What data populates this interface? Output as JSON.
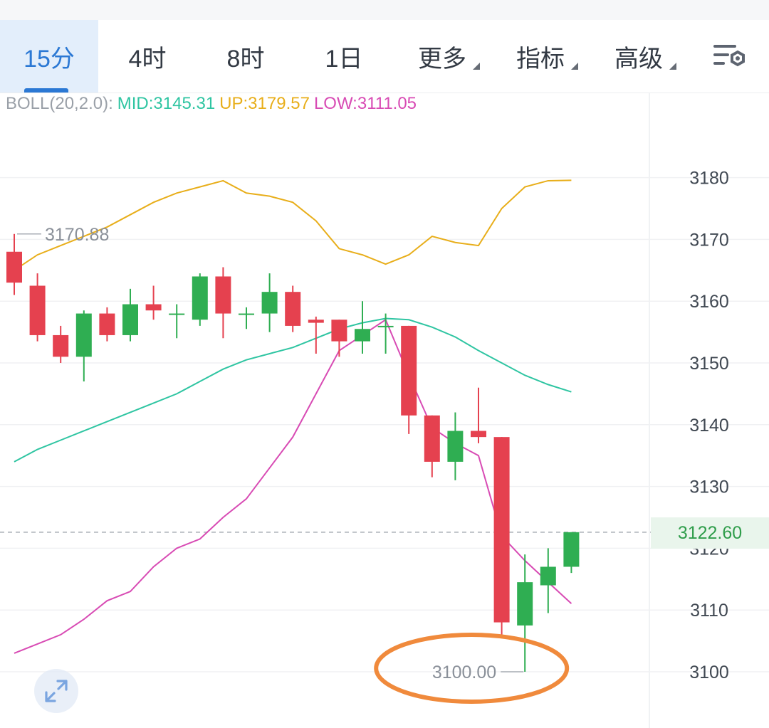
{
  "tabs": [
    {
      "label": "15分",
      "active": true
    },
    {
      "label": "4时",
      "active": false
    },
    {
      "label": "8时",
      "active": false
    },
    {
      "label": "1日",
      "active": false
    },
    {
      "label": "更多",
      "active": false,
      "dropdown": true
    },
    {
      "label": "指标",
      "active": false,
      "dropdown": true
    },
    {
      "label": "高级",
      "active": false,
      "dropdown": true
    }
  ],
  "icons": {
    "settings": "chart-settings-icon",
    "expand": "expand-arrows-icon"
  },
  "indicator": {
    "name": "BOLL(20,2.0):",
    "mid": "MID:3145.31",
    "up": "UP:3179.57",
    "low": "LOW:3111.05"
  },
  "colors": {
    "accent": "#2b78d4",
    "up_candle": "#2fae52",
    "down_candle": "#e5414f",
    "mid": "#2fc5a2",
    "upper": "#e8ae1a",
    "lower": "#d84bb4",
    "highlight_circle": "#f08a3c"
  },
  "current_price": "3122.60",
  "chart_data": {
    "type": "candlestick",
    "interval": "15分",
    "ylim": [
      3095,
      3190
    ],
    "yticks": [
      3100,
      3110,
      3120,
      3130,
      3140,
      3150,
      3160,
      3170,
      3180
    ],
    "grid": true,
    "current_price": 3122.6,
    "annotations": [
      {
        "label": "3170.88",
        "value": 3170.88,
        "target": "high"
      },
      {
        "label": "3100.00",
        "value": 3100.0,
        "target": "low",
        "circled": true
      }
    ],
    "candles": [
      {
        "open": 3168.0,
        "high": 3170.88,
        "low": 3161.0,
        "close": 3163.0
      },
      {
        "open": 3162.5,
        "high": 3164.5,
        "low": 3153.5,
        "close": 3154.5
      },
      {
        "open": 3154.5,
        "high": 3156.0,
        "low": 3150.0,
        "close": 3151.0
      },
      {
        "open": 3151.0,
        "high": 3158.5,
        "low": 3147.0,
        "close": 3158.0
      },
      {
        "open": 3158.0,
        "high": 3159.0,
        "low": 3153.5,
        "close": 3154.5
      },
      {
        "open": 3154.5,
        "high": 3162.0,
        "low": 3153.5,
        "close": 3159.5
      },
      {
        "open": 3159.5,
        "high": 3162.5,
        "low": 3157.0,
        "close": 3158.5
      },
      {
        "open": 3158.0,
        "high": 3159.5,
        "low": 3154.0,
        "close": 3158.0
      },
      {
        "open": 3157.0,
        "high": 3164.5,
        "low": 3156.0,
        "close": 3164.0
      },
      {
        "open": 3164.0,
        "high": 3165.5,
        "low": 3154.0,
        "close": 3158.0
      },
      {
        "open": 3158.0,
        "high": 3159.0,
        "low": 3155.5,
        "close": 3158.0
      },
      {
        "open": 3158.0,
        "high": 3164.5,
        "low": 3155.0,
        "close": 3161.5
      },
      {
        "open": 3161.5,
        "high": 3162.5,
        "low": 3155.0,
        "close": 3156.0
      },
      {
        "open": 3157.0,
        "high": 3157.5,
        "low": 3151.5,
        "close": 3156.5
      },
      {
        "open": 3157.0,
        "high": 3157.0,
        "low": 3151.0,
        "close": 3153.5
      },
      {
        "open": 3153.5,
        "high": 3160.0,
        "low": 3151.5,
        "close": 3155.5
      },
      {
        "open": 3156.0,
        "high": 3158.0,
        "low": 3151.5,
        "close": 3156.0
      },
      {
        "open": 3156.0,
        "high": 3156.0,
        "low": 3138.5,
        "close": 3141.5
      },
      {
        "open": 3141.5,
        "high": 3141.5,
        "low": 3131.5,
        "close": 3134.0
      },
      {
        "open": 3134.0,
        "high": 3142.0,
        "low": 3131.0,
        "close": 3139.0
      },
      {
        "open": 3139.0,
        "high": 3146.0,
        "low": 3137.0,
        "close": 3138.0
      },
      {
        "open": 3138.0,
        "high": 3138.0,
        "low": 3106.0,
        "close": 3108.0
      },
      {
        "open": 3107.5,
        "high": 3119.0,
        "low": 3100.0,
        "close": 3114.5
      },
      {
        "open": 3114.0,
        "high": 3120.0,
        "low": 3109.5,
        "close": 3117.0
      },
      {
        "open": 3117.0,
        "high": 3122.6,
        "low": 3116.0,
        "close": 3122.6
      }
    ],
    "series": [
      {
        "name": "MID",
        "values": [
          3134,
          3136,
          3137.5,
          3139,
          3140.5,
          3142,
          3143.5,
          3145,
          3147,
          3149,
          3150.5,
          3151.5,
          3152.5,
          3154,
          3155.5,
          3156.5,
          3157.2,
          3157,
          3155.8,
          3154.2,
          3152,
          3150,
          3148,
          3146.5,
          3145.31
        ]
      },
      {
        "name": "UP",
        "values": [
          3165,
          3167.5,
          3169,
          3170.5,
          3172,
          3174,
          3176,
          3177.5,
          3178.5,
          3179.5,
          3177.5,
          3177,
          3176,
          3173,
          3168.5,
          3167.5,
          3166,
          3167.5,
          3170.5,
          3169.5,
          3169,
          3175,
          3178.5,
          3179.5,
          3179.57
        ]
      },
      {
        "name": "LOW",
        "values": [
          3103,
          3104.5,
          3106,
          3108.5,
          3111.5,
          3113,
          3117,
          3120,
          3121.5,
          3125,
          3128,
          3133,
          3138,
          3145,
          3152,
          3154.5,
          3157,
          3148,
          3139.5,
          3137,
          3135,
          3122,
          3118,
          3114.5,
          3111.05
        ]
      }
    ]
  }
}
